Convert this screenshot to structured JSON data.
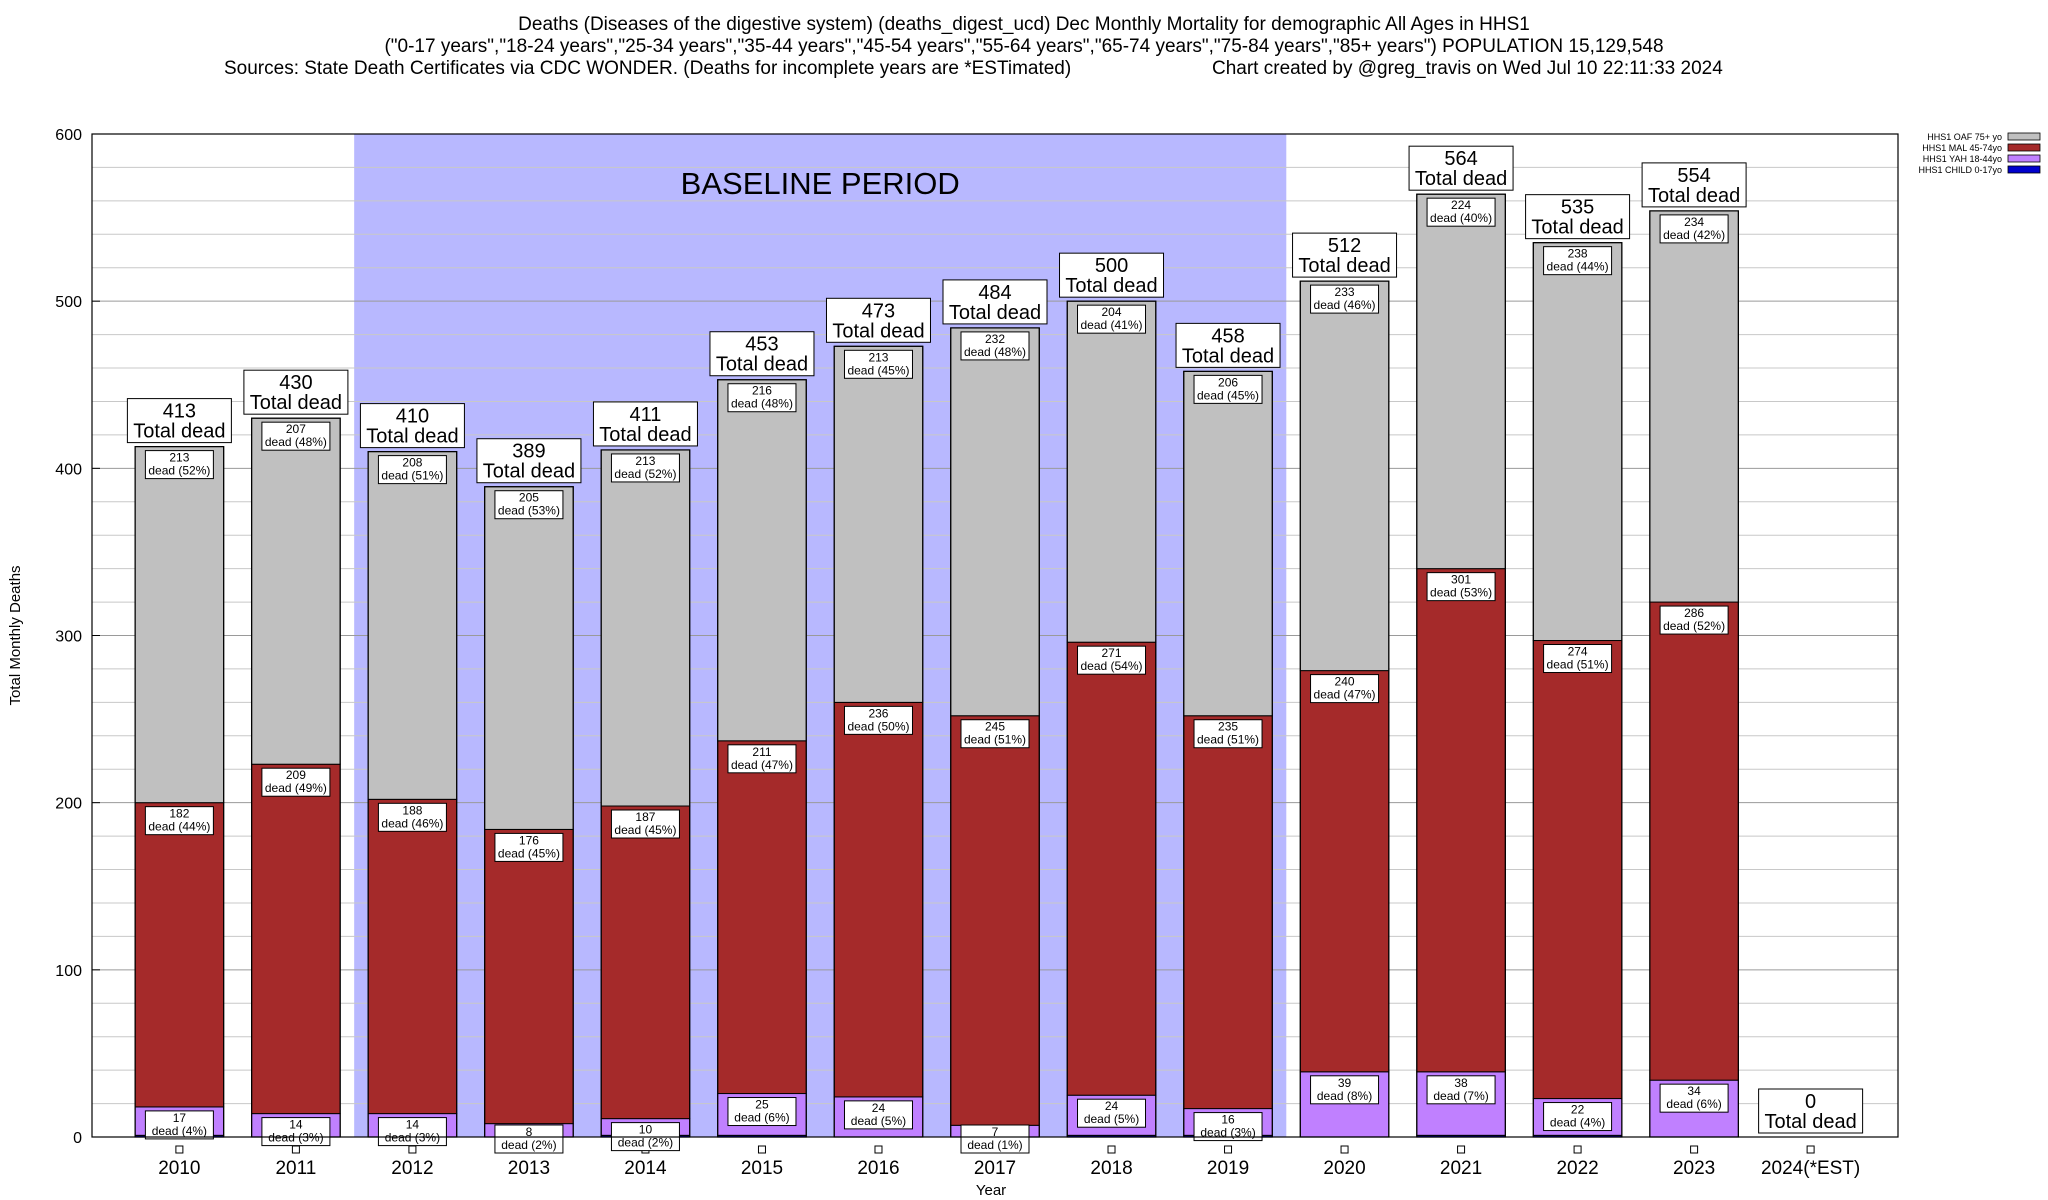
{
  "title": {
    "line1": "Deaths (Diseases of the digestive system) (deaths_digest_ucd) Dec Monthly Mortality for demographic All Ages in HHS1",
    "line2": "(\"0-17 years\",\"18-24 years\",\"25-34 years\",\"35-44 years\",\"45-54 years\",\"55-64 years\",\"65-74 years\",\"75-84 years\",\"85+ years\") POPULATION 15,129,548",
    "sources": "Sources: State Death Certificates via CDC WONDER. (Deaths for incomplete years are *ESTimated)",
    "credit": "Chart created by @greg_travis on Wed Jul 10 22:11:33 2024"
  },
  "colors": {
    "oaf": "#c0c0c0",
    "mal": "#a52a2a",
    "yah": "#c080ff",
    "child": "#0000cd",
    "baseline": "#b8b8ff"
  },
  "chart_data": {
    "type": "bar",
    "stacked": true,
    "xlabel": "Year",
    "ylabel": "Total Monthly Deaths",
    "ylim": [
      0,
      600
    ],
    "yticks": [
      0,
      100,
      200,
      300,
      400,
      500,
      600
    ],
    "grid": true,
    "baseline_label": "BASELINE PERIOD",
    "baseline_range": [
      "2012",
      "2019"
    ],
    "total_suffix": "Total dead",
    "legend_position": "top-right",
    "categories": [
      "2010",
      "2011",
      "2012",
      "2013",
      "2014",
      "2015",
      "2016",
      "2017",
      "2018",
      "2019",
      "2020",
      "2021",
      "2022",
      "2023",
      "2024(*EST)"
    ],
    "totals": [
      413,
      430,
      410,
      389,
      411,
      453,
      473,
      484,
      500,
      458,
      512,
      564,
      535,
      554,
      0
    ],
    "series": [
      {
        "name": "HHS1 CHILD 0-17yo",
        "key": "child",
        "values": [
          1,
          0,
          0,
          0,
          1,
          1,
          0,
          0,
          1,
          1,
          0,
          1,
          1,
          0,
          0
        ],
        "labels": []
      },
      {
        "name": "HHS1 YAH 18-44yo",
        "key": "yah",
        "values": [
          17,
          14,
          14,
          8,
          10,
          25,
          24,
          7,
          24,
          16,
          39,
          38,
          22,
          34,
          0
        ],
        "labels": [
          [
            "17",
            "dead (4%)"
          ],
          [
            "14",
            "dead (3%)"
          ],
          [
            "14",
            "dead (3%)"
          ],
          [
            "8",
            "dead (2%)"
          ],
          [
            "10",
            "dead (2%)"
          ],
          [
            "25",
            "dead (6%)"
          ],
          [
            "24",
            "dead (5%)"
          ],
          [
            "7",
            "dead (1%)"
          ],
          [
            "24",
            "dead (5%)"
          ],
          [
            "16",
            "dead (3%)"
          ],
          [
            "39",
            "dead (8%)"
          ],
          [
            "38",
            "dead (7%)"
          ],
          [
            "22",
            "dead (4%)"
          ],
          [
            "34",
            "dead (6%)"
          ],
          null
        ]
      },
      {
        "name": "HHS1 MAL 45-74yo",
        "key": "mal",
        "values": [
          182,
          209,
          188,
          176,
          187,
          211,
          236,
          245,
          271,
          235,
          240,
          301,
          274,
          286,
          0
        ],
        "labels": [
          [
            "182",
            "dead (44%)"
          ],
          [
            "209",
            "dead (49%)"
          ],
          [
            "188",
            "dead (46%)"
          ],
          [
            "176",
            "dead (45%)"
          ],
          [
            "187",
            "dead (45%)"
          ],
          [
            "211",
            "dead (47%)"
          ],
          [
            "236",
            "dead (50%)"
          ],
          [
            "245",
            "dead (51%)"
          ],
          [
            "271",
            "dead (54%)"
          ],
          [
            "235",
            "dead (51%)"
          ],
          [
            "240",
            "dead (47%)"
          ],
          [
            "301",
            "dead (53%)"
          ],
          [
            "274",
            "dead (51%)"
          ],
          [
            "286",
            "dead (52%)"
          ],
          null
        ]
      },
      {
        "name": "HHS1 OAF 75+ yo",
        "key": "oaf",
        "values": [
          213,
          207,
          208,
          205,
          213,
          216,
          213,
          232,
          204,
          206,
          233,
          224,
          238,
          234,
          0
        ],
        "labels": [
          [
            "213",
            "dead (52%)"
          ],
          [
            "207",
            "dead (48%)"
          ],
          [
            "208",
            "dead (51%)"
          ],
          [
            "205",
            "dead (53%)"
          ],
          [
            "213",
            "dead (52%)"
          ],
          [
            "216",
            "dead (48%)"
          ],
          [
            "213",
            "dead (45%)"
          ],
          [
            "232",
            "dead (48%)"
          ],
          [
            "204",
            "dead (41%)"
          ],
          [
            "206",
            "dead (45%)"
          ],
          [
            "233",
            "dead (46%)"
          ],
          [
            "224",
            "dead (40%)"
          ],
          [
            "238",
            "dead (44%)"
          ],
          [
            "234",
            "dead (42%)"
          ],
          null
        ]
      }
    ],
    "legend": [
      {
        "name": "HHS1 OAF 75+ yo",
        "key": "oaf"
      },
      {
        "name": "HHS1 MAL 45-74yo",
        "key": "mal"
      },
      {
        "name": "HHS1 YAH 18-44yo",
        "key": "yah"
      },
      {
        "name": "HHS1 CHILD 0-17yo",
        "key": "child"
      }
    ]
  }
}
